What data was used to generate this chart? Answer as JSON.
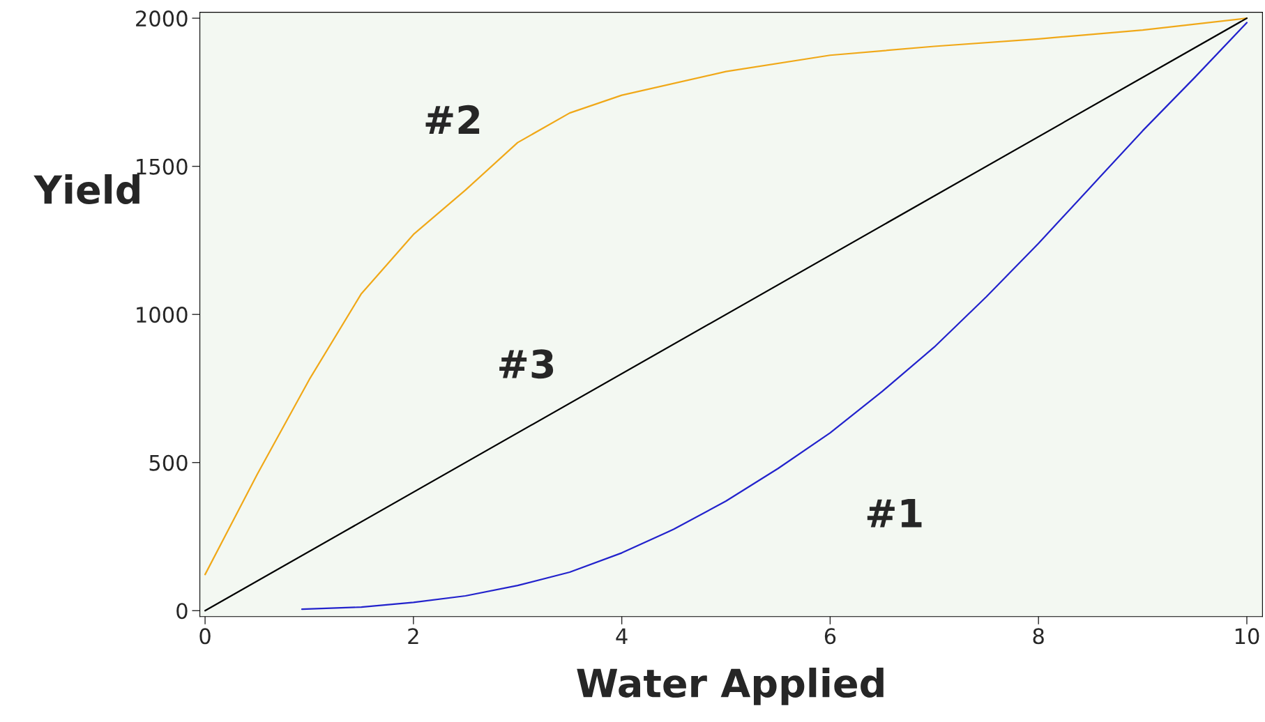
{
  "chart_data": {
    "type": "line",
    "xlabel": "Water Applied",
    "ylabel": "Yield",
    "xlim": [
      -0.05,
      10.15
    ],
    "ylim": [
      -20,
      2020
    ],
    "xticks": [
      0,
      2,
      4,
      6,
      8,
      10
    ],
    "yticks": [
      0,
      500,
      1000,
      1500,
      2000
    ],
    "grid": false,
    "legend": false,
    "series": [
      {
        "name": "#1",
        "color": "#2222cc",
        "x": [
          0.93,
          1.5,
          2,
          2.5,
          3,
          3.5,
          4,
          4.5,
          5,
          5.5,
          6,
          6.5,
          7,
          7.5,
          8,
          8.5,
          9,
          9.5,
          10
        ],
        "values": [
          5,
          12,
          28,
          50,
          85,
          130,
          195,
          275,
          370,
          480,
          600,
          740,
          890,
          1060,
          1240,
          1430,
          1620,
          1800,
          1985
        ]
      },
      {
        "name": "#2",
        "color": "#f0a818",
        "x": [
          0,
          0.5,
          1,
          1.5,
          2,
          2.5,
          3,
          3.5,
          4,
          5,
          6,
          7,
          8,
          9,
          10
        ],
        "values": [
          122,
          460,
          780,
          1070,
          1270,
          1420,
          1580,
          1680,
          1740,
          1820,
          1875,
          1905,
          1930,
          1960,
          2000
        ]
      },
      {
        "name": "#3",
        "color": "#000000",
        "x": [
          0,
          10
        ],
        "values": [
          0,
          2000
        ]
      }
    ]
  }
}
